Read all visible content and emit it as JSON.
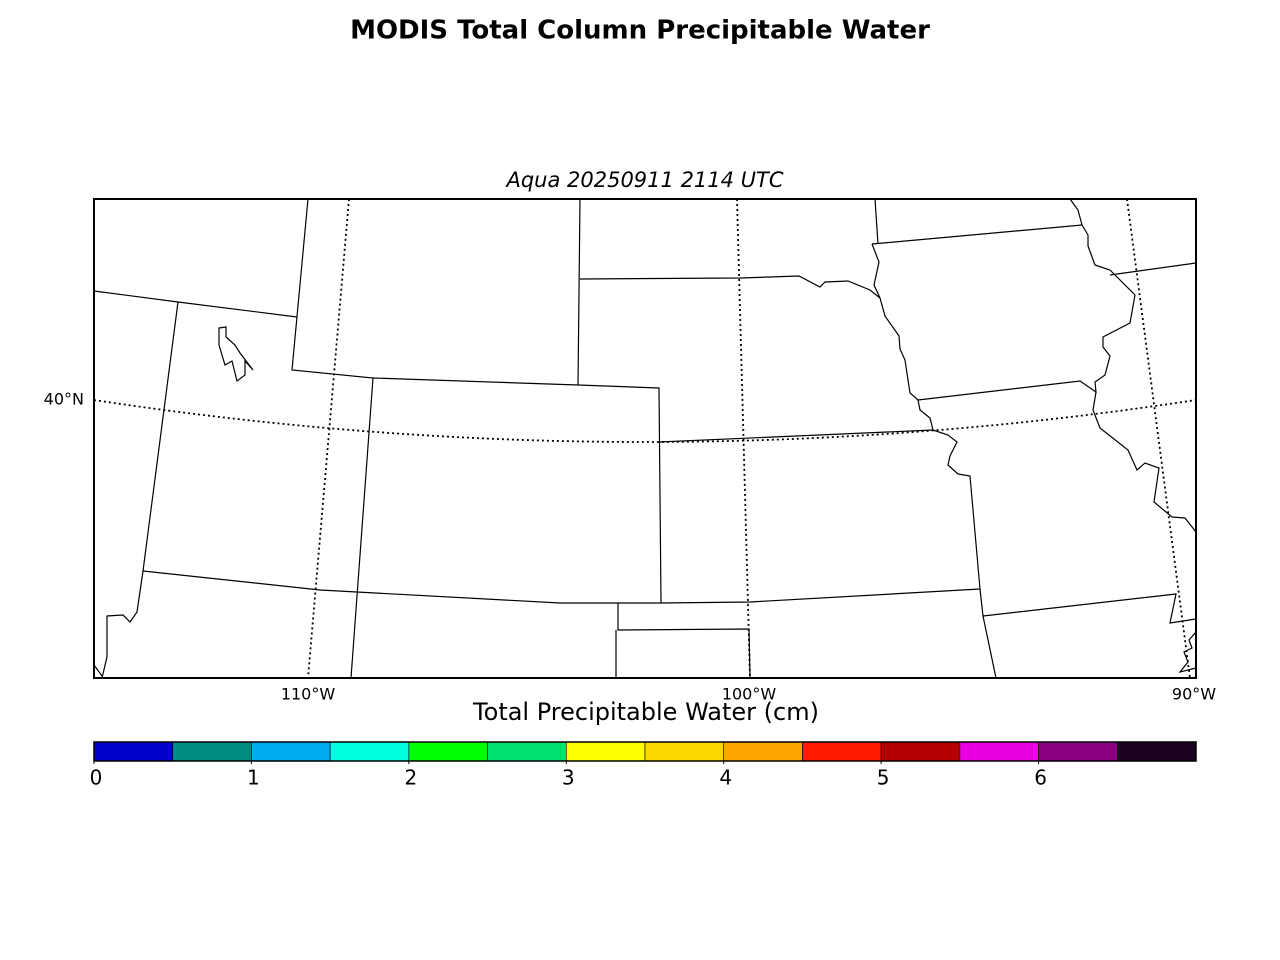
{
  "title": "MODIS Total Column Precipitable Water",
  "subtitle": "Aqua 20250911 2114 UTC",
  "map": {
    "lat_labels": [
      "40°N"
    ],
    "lon_labels": [
      "110°W",
      "100°W",
      "90°W"
    ]
  },
  "colorbar": {
    "label": "Total Precipitable Water (cm)",
    "lim": [
      0,
      7
    ],
    "ticks": [
      0,
      1,
      2,
      3,
      4,
      5,
      6
    ],
    "colors": [
      "#0000cd",
      "#008b80",
      "#00aaee",
      "#00ffe0",
      "#00ff00",
      "#00e070",
      "#ffff00",
      "#ffd700",
      "#ffa500",
      "#ff1a00",
      "#b40000",
      "#e800e0",
      "#880080",
      "#1e0020"
    ]
  }
}
